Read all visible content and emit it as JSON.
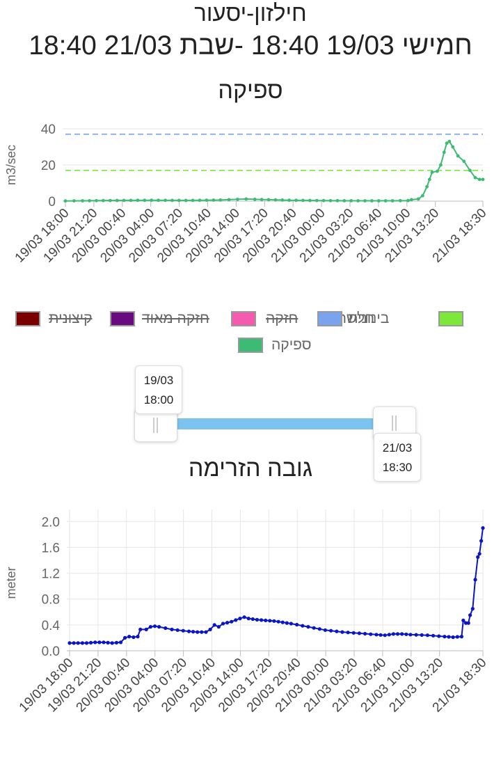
{
  "header": {
    "station": "חילזון-יסעור",
    "period": "חמישי 19/03 18:40 -שבת 21/03 18:40",
    "flow_title": "ספיקה",
    "level_title": "גובה הזרימה"
  },
  "legend": {
    "items": [
      {
        "label": "חלשה",
        "color": "#7ee83a",
        "hidden": false
      },
      {
        "label": "בינונית",
        "color": "#7aa3ef",
        "hidden": false
      },
      {
        "label": "חזקה",
        "color": "#f45aae",
        "hidden": true
      },
      {
        "label": "חזקה מאוד",
        "color": "#6a0a80",
        "hidden": true
      },
      {
        "label": "קיצונית",
        "color": "#7a0000",
        "hidden": true
      },
      {
        "label": "ספיקה",
        "color": "#3cbb74",
        "hidden": false
      }
    ]
  },
  "slider": {
    "start": {
      "date": "19/03",
      "time": "18:00"
    },
    "end": {
      "date": "21/03",
      "time": "18:30"
    }
  },
  "chart_data": [
    {
      "type": "line",
      "title": "ספיקה",
      "ylabel": "m3/sec",
      "ylim": [
        0,
        40
      ],
      "yticks": [
        0,
        20,
        40
      ],
      "x_ticks": [
        "19/03 18:00",
        "19/03 21:20",
        "20/03 00:40",
        "20/03 04:00",
        "20/03 07:20",
        "20/03 10:40",
        "20/03 14:00",
        "20/03 17:20",
        "20/03 20:40",
        "21/03 00:00",
        "21/03 03:20",
        "21/03 06:40",
        "21/03 10:00",
        "21/03 13:20",
        "21/03 18:30"
      ],
      "x_range_hours": [
        0,
        48.5
      ],
      "color": "#3cbb74",
      "thresholds": [
        {
          "name": "חלשה",
          "value": 17,
          "color": "#7ee83a"
        },
        {
          "name": "בינונית",
          "value": 37,
          "color": "#7aa3ef"
        }
      ],
      "series": [
        {
          "name": "ספיקה",
          "points": [
            [
              0,
              0.1
            ],
            [
              2,
              0.2
            ],
            [
              6,
              0.4
            ],
            [
              10,
              0.5
            ],
            [
              14,
              0.4
            ],
            [
              18,
              0.6
            ],
            [
              20,
              1.0
            ],
            [
              21,
              1.2
            ],
            [
              22,
              1.0
            ],
            [
              26,
              0.5
            ],
            [
              30,
              0.3
            ],
            [
              34,
              0.2
            ],
            [
              38,
              0.2
            ],
            [
              39.8,
              0.3
            ],
            [
              40.2,
              0.8
            ],
            [
              41,
              1.2
            ],
            [
              41.5,
              3
            ],
            [
              42,
              8
            ],
            [
              42.3,
              12
            ],
            [
              42.6,
              16
            ],
            [
              43.2,
              16.5
            ],
            [
              43.6,
              20
            ],
            [
              44,
              27
            ],
            [
              44.3,
              32
            ],
            [
              44.6,
              33
            ],
            [
              45,
              30
            ],
            [
              45.6,
              25
            ],
            [
              46.3,
              22
            ],
            [
              47,
              17
            ],
            [
              47.6,
              13
            ],
            [
              48.1,
              12
            ],
            [
              48.5,
              12
            ]
          ]
        }
      ]
    },
    {
      "type": "line",
      "title": "גובה הזרימה",
      "ylabel": "meter",
      "ylim": [
        0,
        2.1
      ],
      "yticks": [
        0,
        0.4,
        0.8,
        1.2,
        1.6,
        2.0
      ],
      "x_ticks": [
        "19/03 18:00",
        "19/03 21:20",
        "20/03 00:40",
        "20/03 04:00",
        "20/03 07:20",
        "20/03 10:40",
        "20/03 14:00",
        "20/03 17:20",
        "20/03 20:40",
        "21/03 00:00",
        "21/03 03:20",
        "21/03 06:40",
        "21/03 10:00",
        "21/03 13:20",
        "21/03 18:30"
      ],
      "x_range_hours": [
        0,
        48.5
      ],
      "color": "#0a14c8",
      "series": [
        {
          "name": "",
          "points": [
            [
              0,
              0.12
            ],
            [
              1,
              0.12
            ],
            [
              2,
              0.12
            ],
            [
              3,
              0.13
            ],
            [
              4,
              0.13
            ],
            [
              5,
              0.12
            ],
            [
              6,
              0.13
            ],
            [
              6.5,
              0.2
            ],
            [
              7,
              0.22
            ],
            [
              7.5,
              0.21
            ],
            [
              8,
              0.22
            ],
            [
              8.3,
              0.33
            ],
            [
              9,
              0.33
            ],
            [
              9.5,
              0.37
            ],
            [
              10,
              0.38
            ],
            [
              10.5,
              0.37
            ],
            [
              12,
              0.33
            ],
            [
              14,
              0.3
            ],
            [
              15,
              0.29
            ],
            [
              16,
              0.29
            ],
            [
              16.5,
              0.33
            ],
            [
              17,
              0.4
            ],
            [
              17.5,
              0.37
            ],
            [
              18,
              0.42
            ],
            [
              19,
              0.45
            ],
            [
              20,
              0.5
            ],
            [
              20.5,
              0.52
            ],
            [
              21,
              0.5
            ],
            [
              22,
              0.48
            ],
            [
              23,
              0.47
            ],
            [
              24,
              0.46
            ],
            [
              25,
              0.44
            ],
            [
              26,
              0.42
            ],
            [
              28,
              0.37
            ],
            [
              30,
              0.32
            ],
            [
              32,
              0.29
            ],
            [
              34,
              0.27
            ],
            [
              36,
              0.25
            ],
            [
              37,
              0.24
            ],
            [
              38,
              0.26
            ],
            [
              39,
              0.26
            ],
            [
              40,
              0.25
            ],
            [
              42,
              0.24
            ],
            [
              44,
              0.22
            ],
            [
              45,
              0.21
            ],
            [
              46,
              0.22
            ],
            [
              46.2,
              0.47
            ],
            [
              46.5,
              0.43
            ],
            [
              46.8,
              0.43
            ],
            [
              47,
              0.55
            ],
            [
              47.3,
              0.65
            ],
            [
              47.6,
              1.1
            ],
            [
              47.9,
              1.45
            ],
            [
              48.1,
              1.5
            ],
            [
              48.3,
              1.7
            ],
            [
              48.5,
              1.9
            ]
          ]
        }
      ]
    }
  ]
}
